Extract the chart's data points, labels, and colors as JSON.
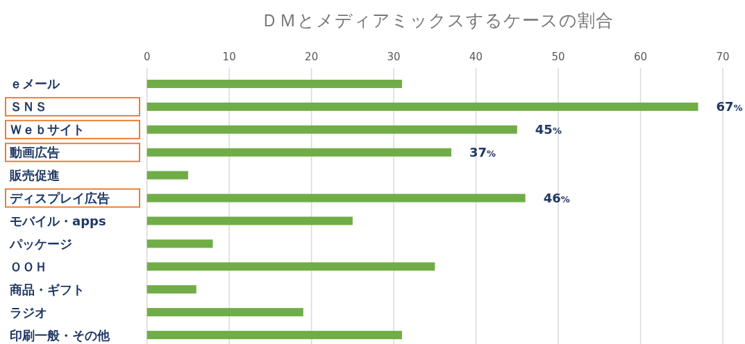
{
  "chart_data": {
    "type": "bar",
    "orientation": "horizontal",
    "title": "ＤＭとメディアミックスするケースの割合",
    "categories": [
      "ｅメール",
      "ＳＮＳ",
      "Ｗｅｂサイト",
      "動画広告",
      "販売促進",
      "ディスプレイ広告",
      "モバイル・apps",
      "パッケージ",
      "ＯＯＨ",
      "商品・ギフト",
      "ラジオ",
      "印刷一般・その他"
    ],
    "values": [
      31,
      67,
      45,
      37,
      5,
      46,
      25,
      8,
      35,
      6,
      19,
      31
    ],
    "value_labels": [
      null,
      "67%",
      "45%",
      "37%",
      null,
      "46%",
      null,
      null,
      null,
      null,
      null,
      null
    ],
    "color": "#70ad47",
    "xlim": [
      0,
      70
    ],
    "xticks": [
      0,
      10,
      20,
      30,
      40,
      50,
      60,
      70
    ],
    "grid": "x"
  }
}
